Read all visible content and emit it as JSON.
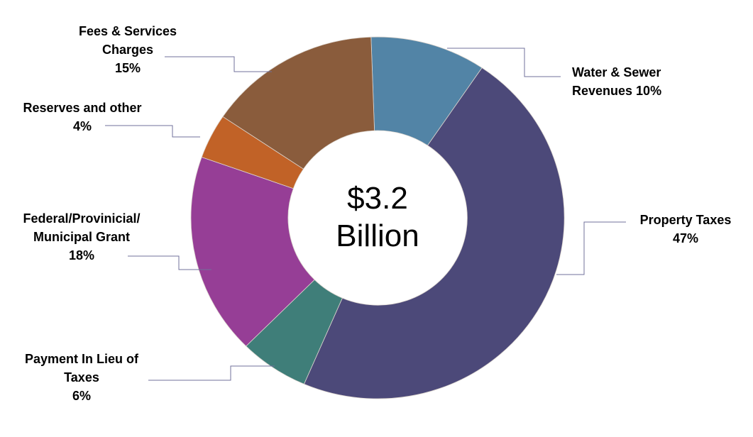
{
  "chart_data": {
    "type": "pie",
    "subtype": "donut",
    "title": "",
    "center_label": {
      "line1": "$3.2",
      "line2": "Billion"
    },
    "direction": "clockwise",
    "start_angle_deg": -2,
    "legend_position": "callout-labels",
    "grid": false,
    "slice_border_color": "#DCD5CE",
    "leader_line_color": "#70709B",
    "slices": [
      {
        "id": "water-sewer-revenues",
        "label": "Water & Sewer Revenues",
        "pct": 10,
        "color": "#5284A6",
        "label_lines": [
          "Water & Sewer",
          "Revenues 10%"
        ]
      },
      {
        "id": "property-taxes",
        "label": "Property Taxes",
        "pct": 47,
        "color": "#4C4979",
        "label_lines": [
          "Property Taxes",
          "47%"
        ]
      },
      {
        "id": "payment-in-lieu-of-taxes",
        "label": "Payment In Lieu of Taxes",
        "pct": 6,
        "color": "#3F7E79",
        "label_lines": [
          "Payment In Lieu of",
          "Taxes",
          "6%"
        ]
      },
      {
        "id": "federal-provincial-municipal-grant",
        "label": "Federal/Provinicial/Municipal Grant",
        "pct": 18,
        "color": "#963E96",
        "label_lines": [
          "Federal/Provinicial/",
          "Municipal Grant",
          "18%"
        ]
      },
      {
        "id": "reserves-and-other",
        "label": "Reserves and other",
        "pct": 4,
        "color": "#C16227",
        "label_lines": [
          "Reserves and other",
          "4%"
        ]
      },
      {
        "id": "fees-services-charges",
        "label": "Fees & Services Charges",
        "pct": 15,
        "color": "#8A5C3C",
        "label_lines": [
          "Fees & Services",
          "Charges",
          "15%"
        ]
      }
    ]
  }
}
